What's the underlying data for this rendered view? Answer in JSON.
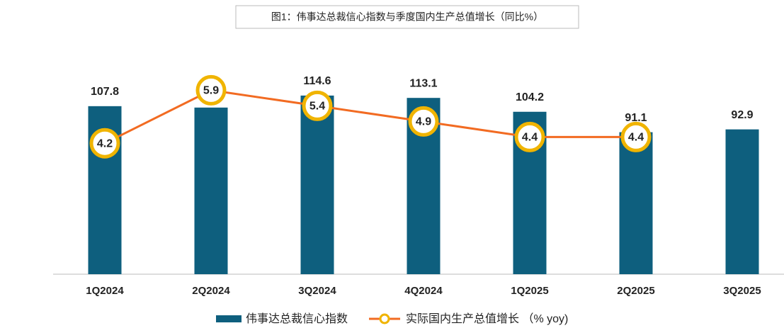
{
  "chart_data": {
    "type": "bar_line",
    "title": "图1：伟事达总裁信心指数与季度国内生产总值增长（同比%）",
    "categories": [
      "1Q2024",
      "2Q2024",
      "3Q2024",
      "4Q2024",
      "1Q2025",
      "2Q2025",
      "3Q2025"
    ],
    "series": [
      {
        "name": "伟事达总裁信心指数",
        "type": "bar",
        "color": "#0e5f7e",
        "values": [
          107.8,
          106.9,
          114.6,
          113.1,
          104.2,
          91.1,
          92.9
        ]
      },
      {
        "name": "实际国内生产总值增长 （% yoy)",
        "type": "line",
        "axis": "y2",
        "color": "#f26b22",
        "marker_color": "#f0b400",
        "values": [
          4.2,
          5.9,
          5.4,
          4.9,
          4.4,
          4.4,
          null
        ]
      }
    ],
    "ylim": [
      0,
      140
    ],
    "y2lim": [
      0,
      7
    ]
  }
}
